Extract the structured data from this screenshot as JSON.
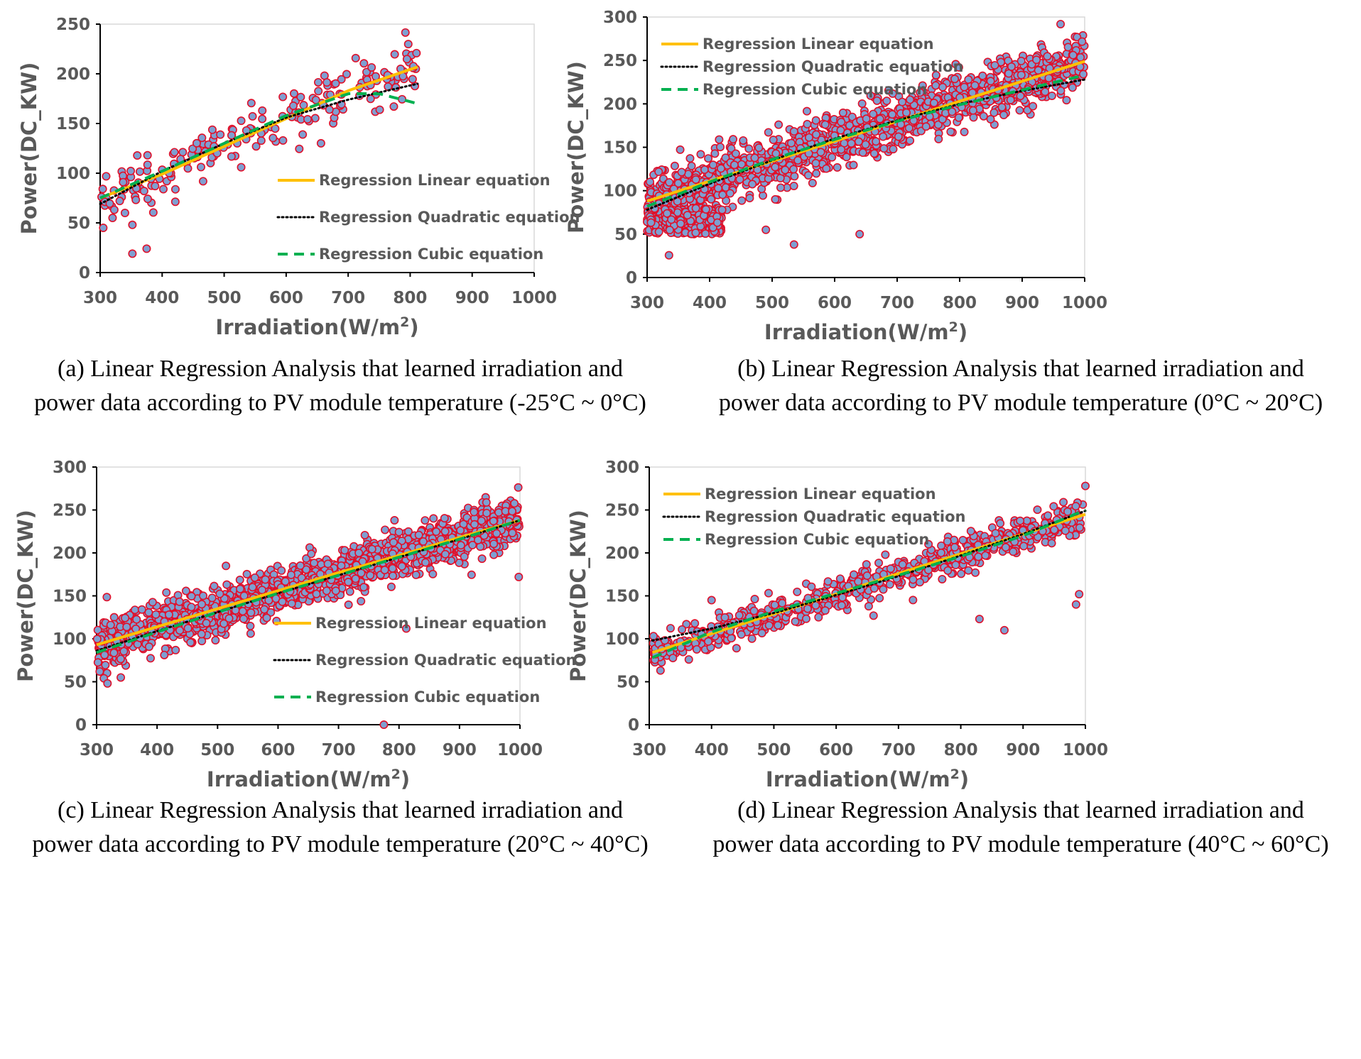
{
  "chart_data": [
    {
      "type": "scatter",
      "panel": "a",
      "caption_line1": "(a) Linear Regression Analysis that learned irradiation and",
      "caption_line2": "power data according to PV module temperature (-25°C ~ 0°C)",
      "xlabel": "Irradiation(W/m",
      "xlabel_sup": "2",
      "xlabel_close": ")",
      "ylabel": "Power(DC_KW)",
      "xlim": [
        300,
        1000
      ],
      "ylim": [
        0,
        250
      ],
      "xticks": [
        "300",
        "400",
        "500",
        "600",
        "700",
        "800",
        "900",
        "1000"
      ],
      "yticks": [
        "0",
        "50",
        "100",
        "150",
        "200",
        "250"
      ],
      "legend_position": "lower-right",
      "scatter_range": [
        300,
        812
      ],
      "fit_range": [
        300,
        812
      ],
      "cloud": {
        "n": 200,
        "noise": 14,
        "outliers": [
          [
            352,
            19
          ],
          [
            375,
            24
          ],
          [
            352,
            48
          ],
          [
            305,
            45
          ],
          [
            320,
            55
          ],
          [
            340,
            60
          ]
        ]
      },
      "series": [
        {
          "name": "Regression Linear equation",
          "style": "solid",
          "color": "#FFC000",
          "points": [
            [
              300,
              75
            ],
            [
              400,
              99
            ],
            [
              500,
              127
            ],
            [
              600,
              155
            ],
            [
              700,
              183
            ],
            [
              812,
              207
            ]
          ]
        },
        {
          "name": "Regression Quadratic equation",
          "style": "dotted",
          "color": "#000000",
          "points": [
            [
              300,
              69
            ],
            [
              400,
              102
            ],
            [
              500,
              130
            ],
            [
              600,
              156
            ],
            [
              700,
              174
            ],
            [
              812,
              190
            ]
          ]
        },
        {
          "name": "Regression Cubic equation",
          "style": "dashed",
          "color": "#00B050",
          "points": [
            [
              300,
              75
            ],
            [
              400,
              102
            ],
            [
              500,
              130
            ],
            [
              600,
              158
            ],
            [
              700,
              180
            ],
            [
              750,
              180
            ],
            [
              812,
              170
            ]
          ]
        }
      ]
    },
    {
      "type": "scatter",
      "panel": "b",
      "caption_line1": "(b) Linear Regression Analysis that learned irradiation and",
      "caption_line2": "power data according to PV module temperature (0°C ~ 20°C)",
      "xlabel": "Irradiation(W/m",
      "xlabel_sup": "2",
      "xlabel_close": ")",
      "ylabel": "Power(DC_KW)",
      "xlim": [
        300,
        1000
      ],
      "ylim": [
        0,
        300
      ],
      "xticks": [
        "300",
        "400",
        "500",
        "600",
        "700",
        "800",
        "900",
        "1000"
      ],
      "yticks": [
        "0",
        "50",
        "100",
        "150",
        "200",
        "250",
        "300"
      ],
      "legend_position": "top-left",
      "scatter_range": [
        300,
        1000
      ],
      "fit_range": [
        300,
        1000
      ],
      "cloud": {
        "n": 1300,
        "noise": 16,
        "outliers": [
          [
            490,
            55
          ],
          [
            535,
            38
          ],
          [
            640,
            50
          ],
          [
            505,
            90
          ]
        ],
        "low_band": [
          300,
          420,
          50,
          80
        ]
      },
      "series": [
        {
          "name": "Regression Linear equation",
          "style": "solid",
          "color": "#FFC000",
          "points": [
            [
              300,
              88
            ],
            [
              400,
              111
            ],
            [
              500,
              134
            ],
            [
              600,
              157
            ],
            [
              700,
              180
            ],
            [
              800,
              203
            ],
            [
              900,
              226
            ],
            [
              1000,
              249
            ]
          ]
        },
        {
          "name": "Regression Quadratic equation",
          "style": "dotted",
          "color": "#000000",
          "points": [
            [
              300,
              78
            ],
            [
              400,
              108
            ],
            [
              500,
              135
            ],
            [
              600,
              160
            ],
            [
              700,
              181
            ],
            [
              800,
              200
            ],
            [
              900,
              215
            ],
            [
              1000,
              228
            ]
          ]
        },
        {
          "name": "Regression Cubic equation",
          "style": "dashed",
          "color": "#00B050",
          "points": [
            [
              300,
              82
            ],
            [
              400,
              110
            ],
            [
              500,
              136
            ],
            [
              600,
              159
            ],
            [
              700,
              180
            ],
            [
              800,
              199
            ],
            [
              900,
              216
            ],
            [
              1000,
              233
            ]
          ]
        }
      ]
    },
    {
      "type": "scatter",
      "panel": "c",
      "caption_line1": "(c) Linear Regression Analysis that learned irradiation and",
      "caption_line2": "power data according to PV module temperature (20°C ~ 40°C)",
      "xlabel": "Irradiation(W/m",
      "xlabel_sup": "2",
      "xlabel_close": ")",
      "ylabel": "Power(DC_KW)",
      "xlim": [
        300,
        1000
      ],
      "ylim": [
        0,
        300
      ],
      "xticks": [
        "300",
        "400",
        "500",
        "600",
        "700",
        "800",
        "900",
        "1000"
      ],
      "yticks": [
        "0",
        "50",
        "100",
        "150",
        "200",
        "250",
        "300"
      ],
      "legend_position": "lower-right",
      "scatter_range": [
        300,
        1000
      ],
      "fit_range": [
        300,
        1000
      ],
      "cloud": {
        "n": 1500,
        "noise": 14,
        "outliers": [
          [
            312,
            54
          ],
          [
            318,
            48
          ],
          [
            775,
            0
          ],
          [
            812,
            112
          ],
          [
            998,
            172
          ],
          [
            340,
            55
          ]
        ]
      },
      "series": [
        {
          "name": "Regression Linear equation",
          "style": "solid",
          "color": "#FFC000",
          "points": [
            [
              300,
              93
            ],
            [
              400,
              114
            ],
            [
              500,
              135
            ],
            [
              600,
              156
            ],
            [
              700,
              177
            ],
            [
              800,
              197
            ],
            [
              900,
              218
            ],
            [
              1000,
              238
            ]
          ]
        },
        {
          "name": "Regression Quadratic equation",
          "style": "dotted",
          "color": "#000000",
          "points": [
            [
              300,
              86
            ],
            [
              400,
              109
            ],
            [
              500,
              131
            ],
            [
              600,
              153
            ],
            [
              700,
              174
            ],
            [
              800,
              195
            ],
            [
              900,
              216
            ],
            [
              1000,
              238
            ]
          ]
        },
        {
          "name": "Regression Cubic equation",
          "style": "dashed",
          "color": "#00B050",
          "points": [
            [
              300,
              84
            ],
            [
              400,
              108
            ],
            [
              500,
              131
            ],
            [
              600,
              153
            ],
            [
              700,
              174
            ],
            [
              800,
              195
            ],
            [
              900,
              216
            ],
            [
              1000,
              238
            ]
          ]
        }
      ]
    },
    {
      "type": "scatter",
      "panel": "d",
      "caption_line1": "(d) Linear Regression Analysis that learned irradiation and",
      "caption_line2": "power data according to PV module temperature (40°C ~ 60°C)",
      "xlabel": "Irradiation(W/m",
      "xlabel_sup": "2",
      "xlabel_close": ")",
      "ylabel": "Power(DC_KW)",
      "xlim": [
        300,
        1000
      ],
      "ylim": [
        0,
        300
      ],
      "xticks": [
        "300",
        "400",
        "500",
        "600",
        "700",
        "800",
        "900",
        "1000"
      ],
      "yticks": [
        "0",
        "50",
        "100",
        "150",
        "200",
        "250",
        "300"
      ],
      "legend_position": "top-left",
      "scatter_range": [
        305,
        1000
      ],
      "fit_range": [
        305,
        1000
      ],
      "cloud": {
        "n": 700,
        "noise": 10,
        "outliers": [
          [
            400,
            145
          ],
          [
            660,
            127
          ],
          [
            830,
            123
          ],
          [
            870,
            110
          ],
          [
            985,
            140
          ],
          [
            990,
            152
          ],
          [
            1000,
            278
          ],
          [
            310,
            82
          ]
        ]
      },
      "series": [
        {
          "name": "Regression Linear equation",
          "style": "solid",
          "color": "#FFC000",
          "points": [
            [
              305,
              84
            ],
            [
              400,
              106
            ],
            [
              500,
              129
            ],
            [
              600,
              152
            ],
            [
              700,
              176
            ],
            [
              800,
              199
            ],
            [
              900,
              222
            ],
            [
              1000,
              245
            ]
          ]
        },
        {
          "name": "Regression Quadratic equation",
          "style": "dotted",
          "color": "#000000",
          "points": [
            [
              305,
              98
            ],
            [
              400,
              112
            ],
            [
              500,
              130
            ],
            [
              600,
              151
            ],
            [
              700,
              173
            ],
            [
              800,
              197
            ],
            [
              900,
              222
            ],
            [
              1000,
              249
            ]
          ]
        },
        {
          "name": "Regression Cubic equation",
          "style": "dashed",
          "color": "#00B050",
          "points": [
            [
              305,
              78
            ],
            [
              400,
              108
            ],
            [
              500,
              132
            ],
            [
              600,
              153
            ],
            [
              700,
              174
            ],
            [
              800,
              196
            ],
            [
              900,
              220
            ],
            [
              1000,
              250
            ]
          ]
        }
      ]
    }
  ]
}
